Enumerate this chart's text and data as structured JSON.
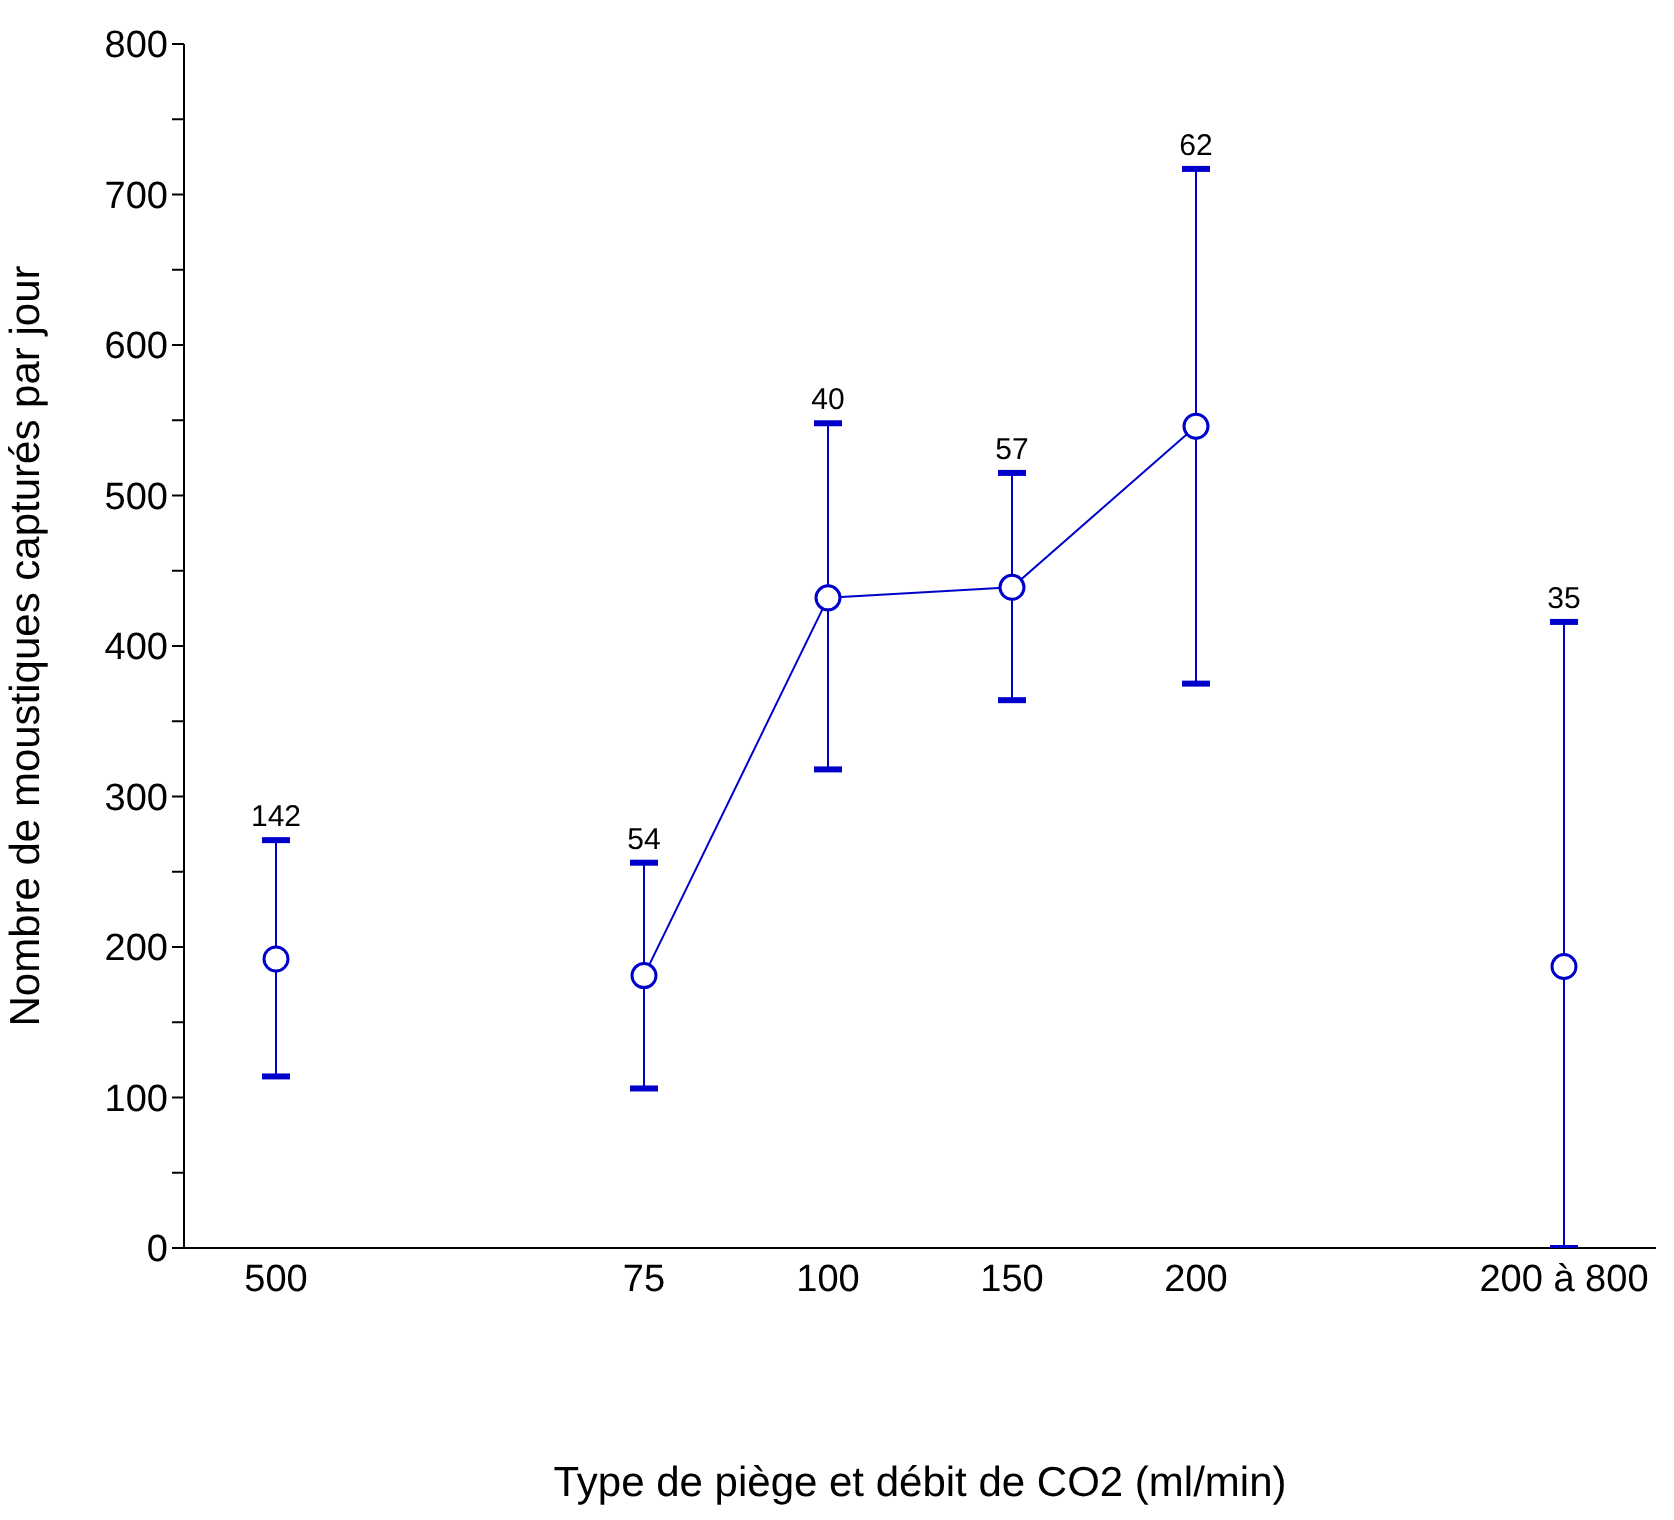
{
  "chart_data": {
    "type": "line",
    "xlabel": "Type de piège et débit de CO2 (ml/min)",
    "ylabel": "Nombre de moustiques capturés par jour",
    "categories": [
      "500",
      null,
      "75",
      "100",
      "150",
      "200",
      null,
      "200 à 800"
    ],
    "series": [
      {
        "type": "scatter",
        "color": "#0000cc",
        "values": [
          192,
          null,
          null,
          null,
          null,
          null,
          null,
          187
        ],
        "errors": [
          [
            114,
            271
          ],
          null,
          null,
          null,
          null,
          null,
          null,
          [
            0,
            416
          ]
        ]
      },
      {
        "color": "#0000cc",
        "values": [
          null,
          null,
          181,
          432,
          439,
          546,
          null,
          null
        ],
        "errors": [
          null,
          null,
          [
            106,
            256
          ],
          [
            318,
            548
          ],
          [
            364,
            515
          ],
          [
            375,
            717
          ],
          null,
          null
        ]
      }
    ],
    "ylim": [
      0,
      800
    ],
    "yticks": [
      0,
      {
        "value": 50,
        "label": null
      },
      100,
      {
        "value": 150,
        "label": null
      },
      200,
      {
        "value": 250,
        "label": null
      },
      300,
      {
        "value": 350,
        "label": null
      },
      400,
      {
        "value": 450,
        "label": null
      },
      500,
      {
        "value": 550,
        "label": null
      },
      600,
      {
        "value": 650,
        "label": null
      },
      700,
      {
        "value": 750,
        "label": null
      },
      800
    ],
    "grid": false,
    "marker": "circle",
    "annotations": [
      {
        "text": "142",
        "x": "500",
        "y": 271
      },
      {
        "text": "54",
        "x": "75",
        "y": 256
      },
      {
        "text": "40",
        "x": "100",
        "y": 548
      },
      {
        "text": "57",
        "x": "150",
        "y": 515
      },
      {
        "text": "62",
        "x": "200",
        "y": 717
      },
      {
        "text": "35",
        "x": "200 à 800",
        "y": 416
      }
    ]
  }
}
